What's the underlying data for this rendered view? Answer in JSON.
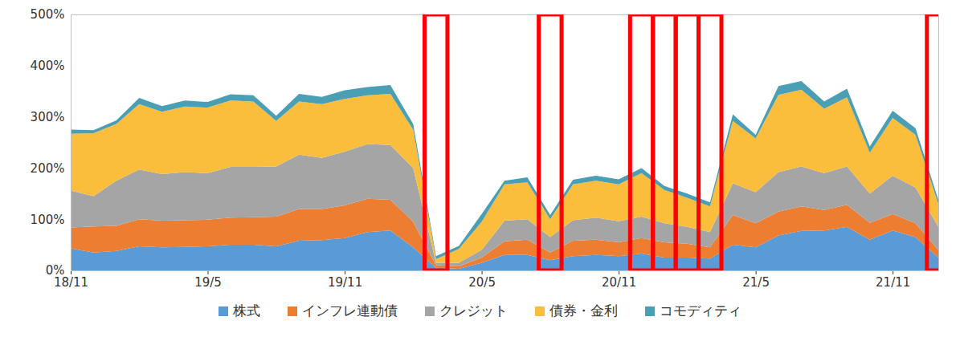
{
  "chart_data": {
    "type": "area",
    "stacked": true,
    "legend": "bottom",
    "grid": false,
    "categories": [
      "18/11",
      null,
      null,
      null,
      null,
      null,
      "19/5",
      null,
      null,
      null,
      null,
      null,
      "19/11",
      null,
      null,
      null,
      null,
      null,
      "20/5",
      null,
      null,
      null,
      null,
      null,
      "20/11",
      null,
      null,
      null,
      null,
      null,
      "21/5",
      null,
      null,
      null,
      null,
      null,
      "21/11",
      null,
      null
    ],
    "ylim": [
      0,
      500
    ],
    "yticks": [
      {
        "value": 0,
        "label": "0%"
      },
      {
        "value": 100,
        "label": "100%"
      },
      {
        "value": 200,
        "label": "200%"
      },
      {
        "value": 300,
        "label": "300%"
      },
      {
        "value": 400,
        "label": "400%"
      },
      {
        "value": 500,
        "label": "500%"
      }
    ],
    "highlights": [
      16,
      21,
      25,
      26,
      27,
      28,
      38
    ],
    "series": [
      {
        "name": "株式",
        "color": "#5b9bd5",
        "values": [
          43,
          35,
          38,
          47,
          45,
          46,
          47,
          50,
          50,
          47,
          58,
          59,
          63,
          75,
          78,
          45,
          5,
          3,
          15,
          30,
          30,
          20,
          28,
          30,
          28,
          33,
          25,
          25,
          23,
          50,
          45,
          68,
          77,
          78,
          85,
          60,
          78,
          65,
          25
        ]
      },
      {
        "name": "インフレ連動債",
        "color": "#ed7d31",
        "values": [
          41,
          51,
          49,
          53,
          52,
          52,
          52,
          53,
          54,
          58,
          62,
          61,
          64,
          65,
          60,
          50,
          5,
          5,
          10,
          27,
          30,
          15,
          30,
          30,
          27,
          30,
          30,
          27,
          22,
          58,
          47,
          47,
          48,
          40,
          43,
          33,
          32,
          27,
          15
        ]
      },
      {
        "name": "クレジット",
        "color": "#a5a5a5",
        "values": [
          72,
          59,
          88,
          97,
          91,
          94,
          91,
          99,
          98,
          98,
          106,
          100,
          105,
          107,
          107,
          105,
          5,
          7,
          15,
          40,
          40,
          30,
          40,
          43,
          41,
          42,
          37,
          33,
          30,
          62,
          61,
          77,
          78,
          72,
          75,
          57,
          75,
          70,
          45
        ]
      },
      {
        "name": "債券・金利",
        "color": "#fbbd3c",
        "values": [
          111,
          123,
          111,
          128,
          122,
          128,
          128,
          130,
          128,
          89,
          104,
          105,
          103,
          95,
          100,
          75,
          7,
          27,
          55,
          71,
          72,
          35,
          70,
          72,
          72,
          85,
          65,
          57,
          50,
          122,
          105,
          151,
          150,
          126,
          135,
          80,
          113,
          103,
          45
        ]
      },
      {
        "name": "コモディティ",
        "color": "#4a9fb5",
        "values": [
          8,
          6,
          7,
          12,
          11,
          12,
          11,
          12,
          12,
          10,
          15,
          14,
          17,
          16,
          17,
          11,
          6,
          6,
          15,
          7,
          10,
          8,
          9,
          10,
          10,
          10,
          8,
          8,
          8,
          13,
          7,
          17,
          17,
          14,
          17,
          12,
          14,
          13,
          8
        ]
      }
    ]
  }
}
